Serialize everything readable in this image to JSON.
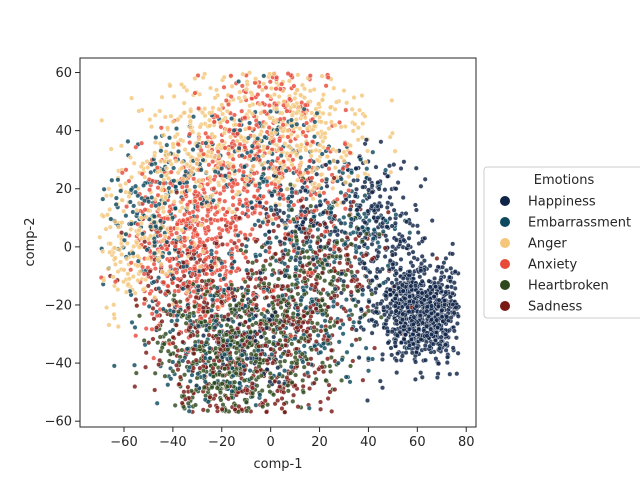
{
  "chart_data": {
    "type": "scatter",
    "title": "",
    "xlabel": "comp-1",
    "ylabel": "comp-2",
    "xlim": [
      -78,
      84
    ],
    "ylim": [
      -62,
      65
    ],
    "xticks": [
      -60,
      -40,
      -20,
      0,
      20,
      40,
      60,
      80
    ],
    "yticks": [
      -60,
      -40,
      -20,
      0,
      20,
      40,
      60
    ],
    "xtick_labels": [
      "−60",
      "−40",
      "−20",
      "0",
      "20",
      "40",
      "60",
      "80"
    ],
    "ytick_labels": [
      "−60",
      "−40",
      "−20",
      "0",
      "20",
      "40",
      "60"
    ],
    "grid": false,
    "legend": {
      "title": "Emotions",
      "placement": "center-right outside"
    },
    "series": [
      {
        "name": "Happiness",
        "color": "#0f2347",
        "region": "broad mix, dense cluster near (62,-22)",
        "points": [
          [
            62,
            -22
          ],
          [
            68,
            -25
          ],
          [
            55,
            -18
          ],
          [
            72,
            -20
          ],
          [
            60,
            -30
          ],
          [
            50,
            -10
          ],
          [
            45,
            5
          ],
          [
            40,
            20
          ],
          [
            -10,
            -30
          ],
          [
            10,
            10
          ]
        ]
      },
      {
        "name": "Embarrassment",
        "color": "#0d4a5f",
        "region": "broad mix over whole cloud",
        "points": [
          [
            -50,
            10
          ],
          [
            -30,
            -20
          ],
          [
            0,
            30
          ],
          [
            20,
            -30
          ],
          [
            10,
            0
          ],
          [
            -40,
            20
          ],
          [
            30,
            10
          ],
          [
            -20,
            -40
          ]
        ]
      },
      {
        "name": "Anger",
        "color": "#f4c77b",
        "region": "dense upper-left",
        "points": [
          [
            -55,
            5
          ],
          [
            -40,
            25
          ],
          [
            -20,
            40
          ],
          [
            0,
            45
          ],
          [
            10,
            35
          ],
          [
            -60,
            0
          ],
          [
            -30,
            30
          ],
          [
            20,
            40
          ]
        ]
      },
      {
        "name": "Anxiety",
        "color": "#e84a3a",
        "region": "dense left-center",
        "points": [
          [
            -35,
            0
          ],
          [
            -25,
            -5
          ],
          [
            -40,
            10
          ],
          [
            -30,
            -10
          ],
          [
            -20,
            20
          ],
          [
            -10,
            30
          ],
          [
            0,
            50
          ],
          [
            10,
            20
          ]
        ]
      },
      {
        "name": "Heartbroken",
        "color": "#2e4a1c",
        "region": "broad mix, lower-center",
        "points": [
          [
            -20,
            -45
          ],
          [
            -10,
            -50
          ],
          [
            0,
            -30
          ],
          [
            10,
            -20
          ],
          [
            -30,
            -30
          ],
          [
            20,
            -10
          ],
          [
            -15,
            -40
          ]
        ]
      },
      {
        "name": "Sadness",
        "color": "#7a1a16",
        "region": "broad mix, lower-center",
        "points": [
          [
            -25,
            -35
          ],
          [
            -15,
            -50
          ],
          [
            5,
            -45
          ],
          [
            15,
            -25
          ],
          [
            -35,
            -15
          ],
          [
            25,
            -5
          ],
          [
            0,
            -10
          ]
        ]
      }
    ]
  }
}
